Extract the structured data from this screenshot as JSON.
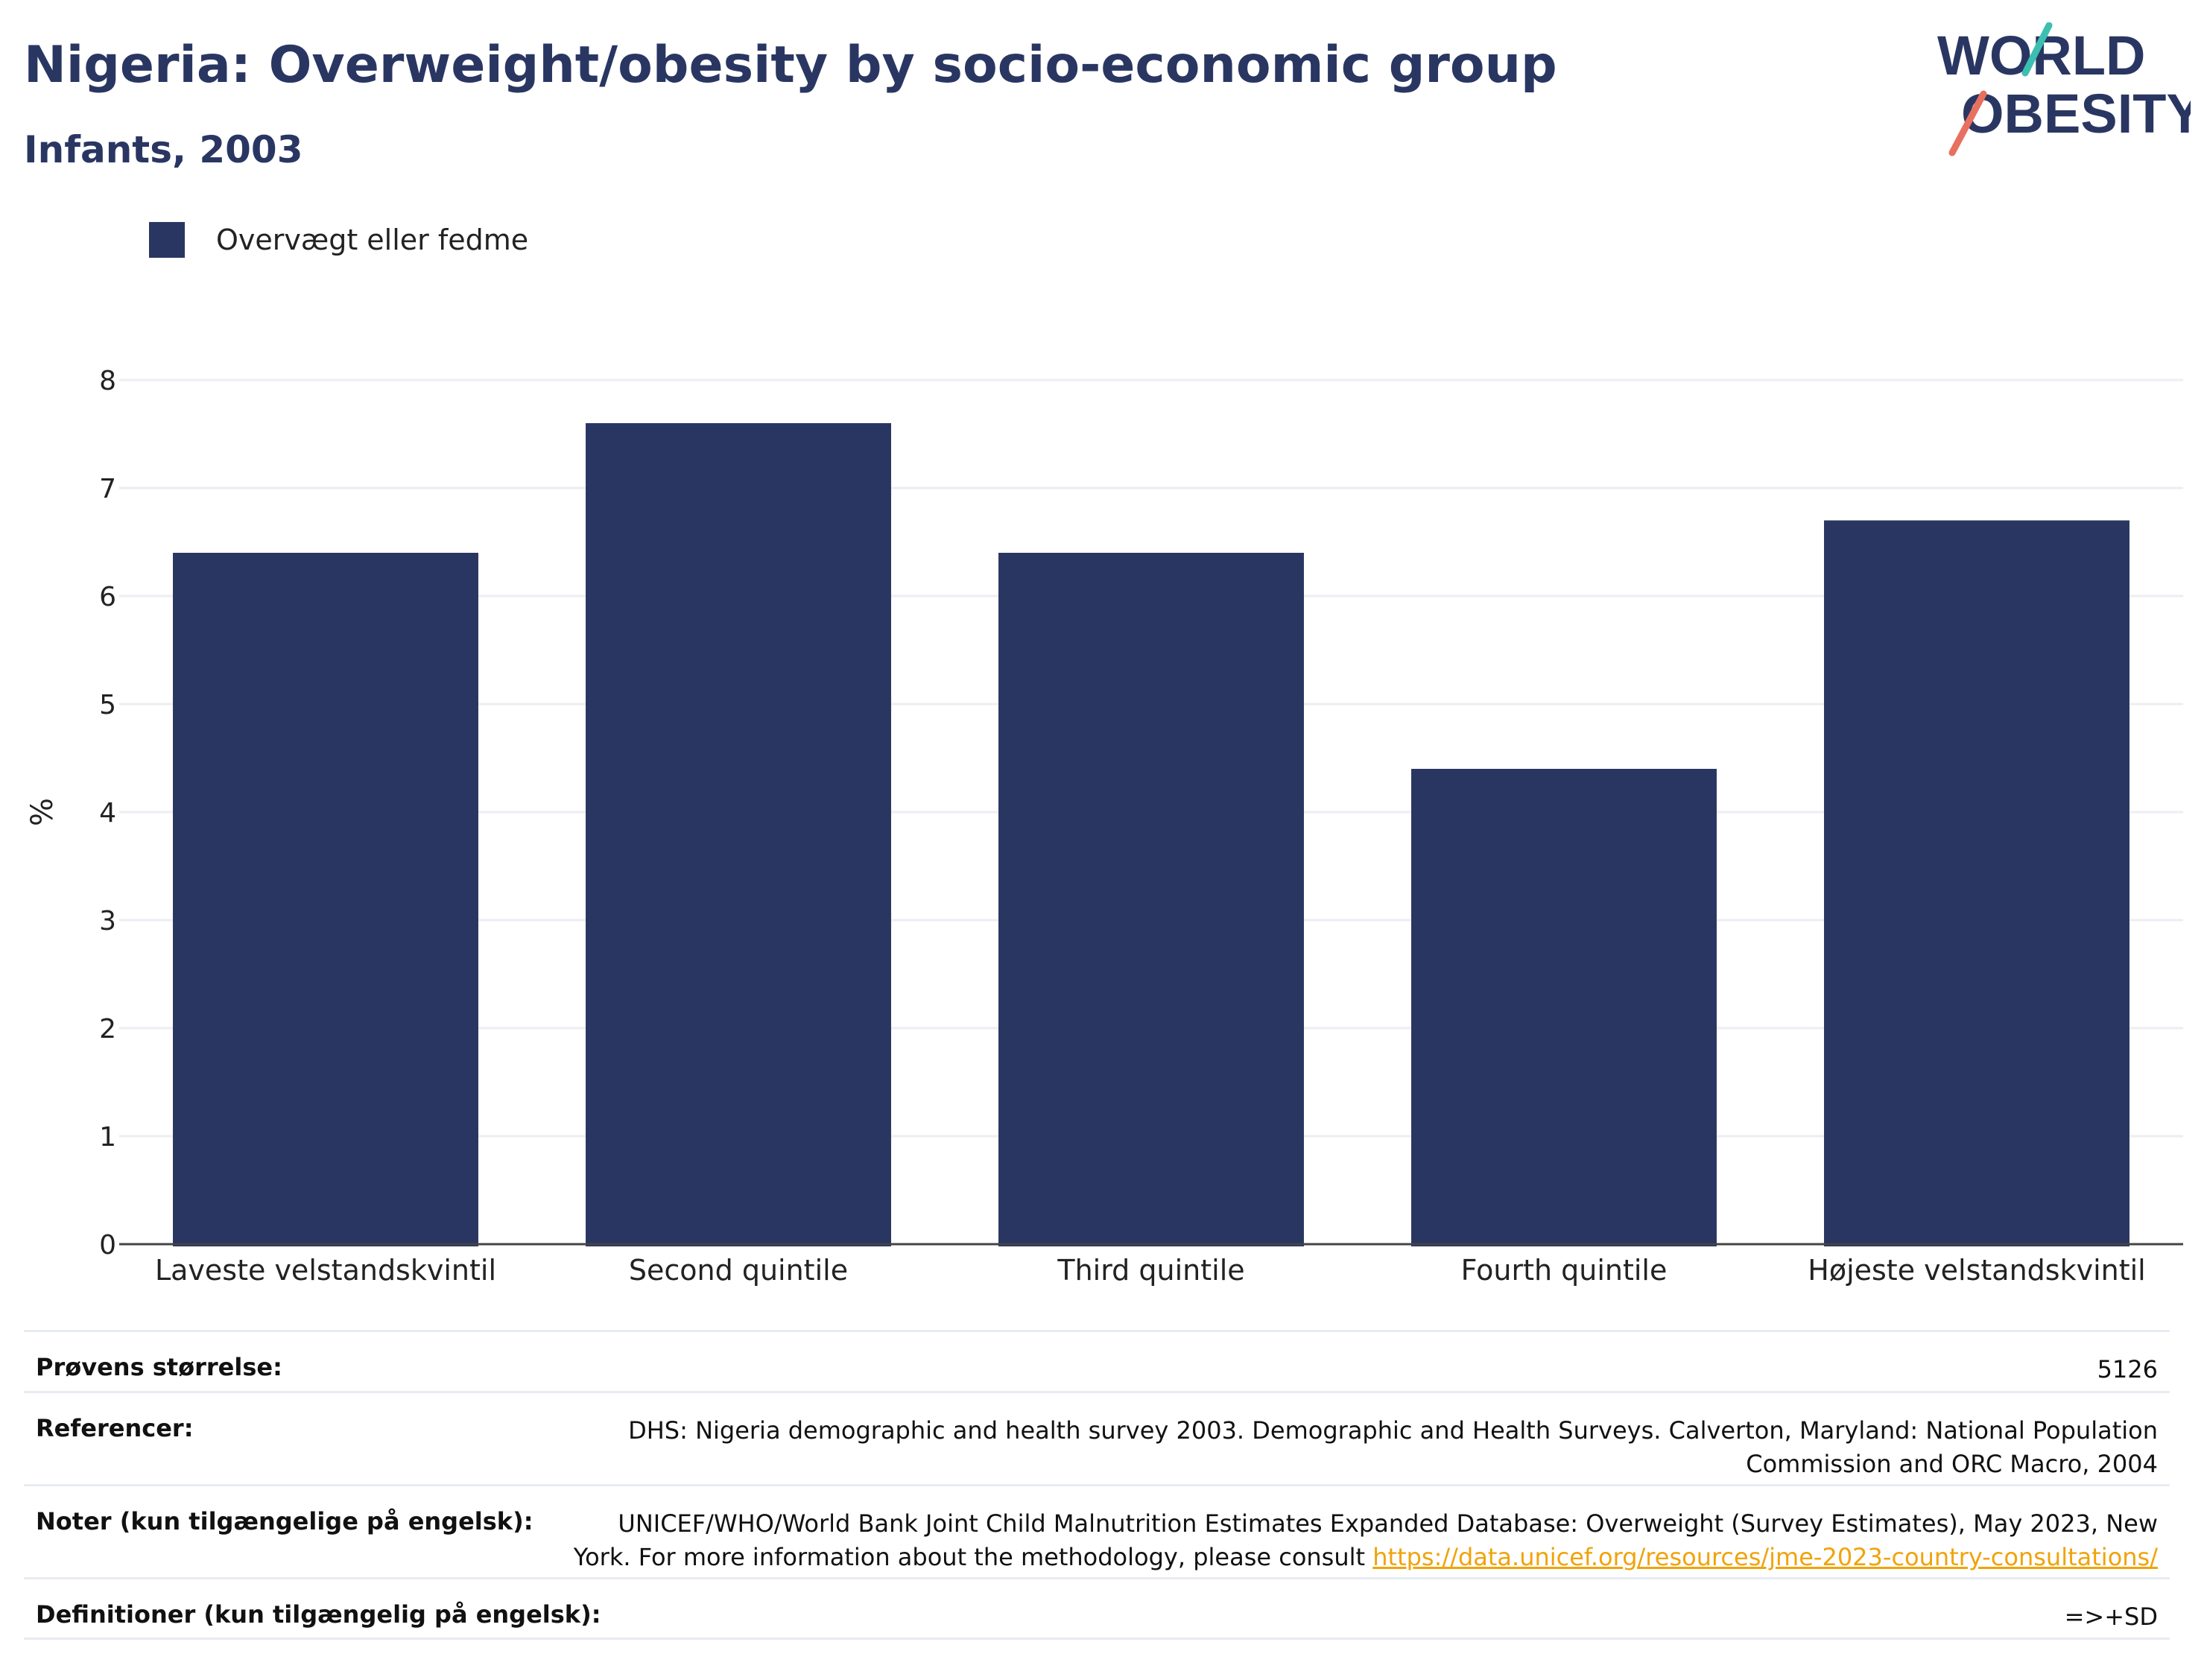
{
  "header": {
    "title": "Nigeria: Overweight/obesity by socio-economic group",
    "subtitle": "Infants, 2003"
  },
  "logo": {
    "line1": "WORLD",
    "line2": "OBESITY",
    "colors": {
      "navy": "#2a3662",
      "teal": "#3bbfb0",
      "coral": "#e8705f"
    }
  },
  "legend": {
    "label": "Overvægt eller fedme",
    "color": "#2a3662"
  },
  "chart_data": {
    "type": "bar",
    "categories": [
      "Laveste velstandskvintil",
      "Second quintile",
      "Third quintile",
      "Fourth quintile",
      "Højeste velstandskvintil"
    ],
    "series": [
      {
        "name": "Overvægt eller fedme",
        "values": [
          6.4,
          7.6,
          6.4,
          4.4,
          6.7
        ],
        "color": "#2a3662"
      }
    ],
    "ylabel": "%",
    "ylim": [
      0,
      8
    ],
    "yticks": [
      "0",
      "1",
      "2",
      "3",
      "4",
      "5",
      "6",
      "7",
      "8"
    ],
    "grid": true,
    "legend_position": "top-left"
  },
  "info": {
    "sample_size": {
      "label": "Prøvens størrelse:",
      "value": "5126"
    },
    "references": {
      "label": "Referencer:",
      "line1": "DHS: Nigeria demographic and health survey 2003. Demographic and Health Surveys. Calverton, Maryland: National Population",
      "line2": "Commission and ORC Macro, 2004"
    },
    "notes": {
      "label": "Noter (kun tilgængelige på engelsk):",
      "line1": "UNICEF/WHO/World Bank Joint Child Malnutrition Estimates Expanded Database: Overweight (Survey Estimates), May 2023, New",
      "line2_prefix": "York. For more information about the methodology, please consult ",
      "link": "https://data.unicef.org/resources/jme-2023-country-consultations/"
    },
    "definitions": {
      "label": "Definitioner (kun tilgængelig på engelsk):",
      "value": "=>+SD"
    }
  }
}
